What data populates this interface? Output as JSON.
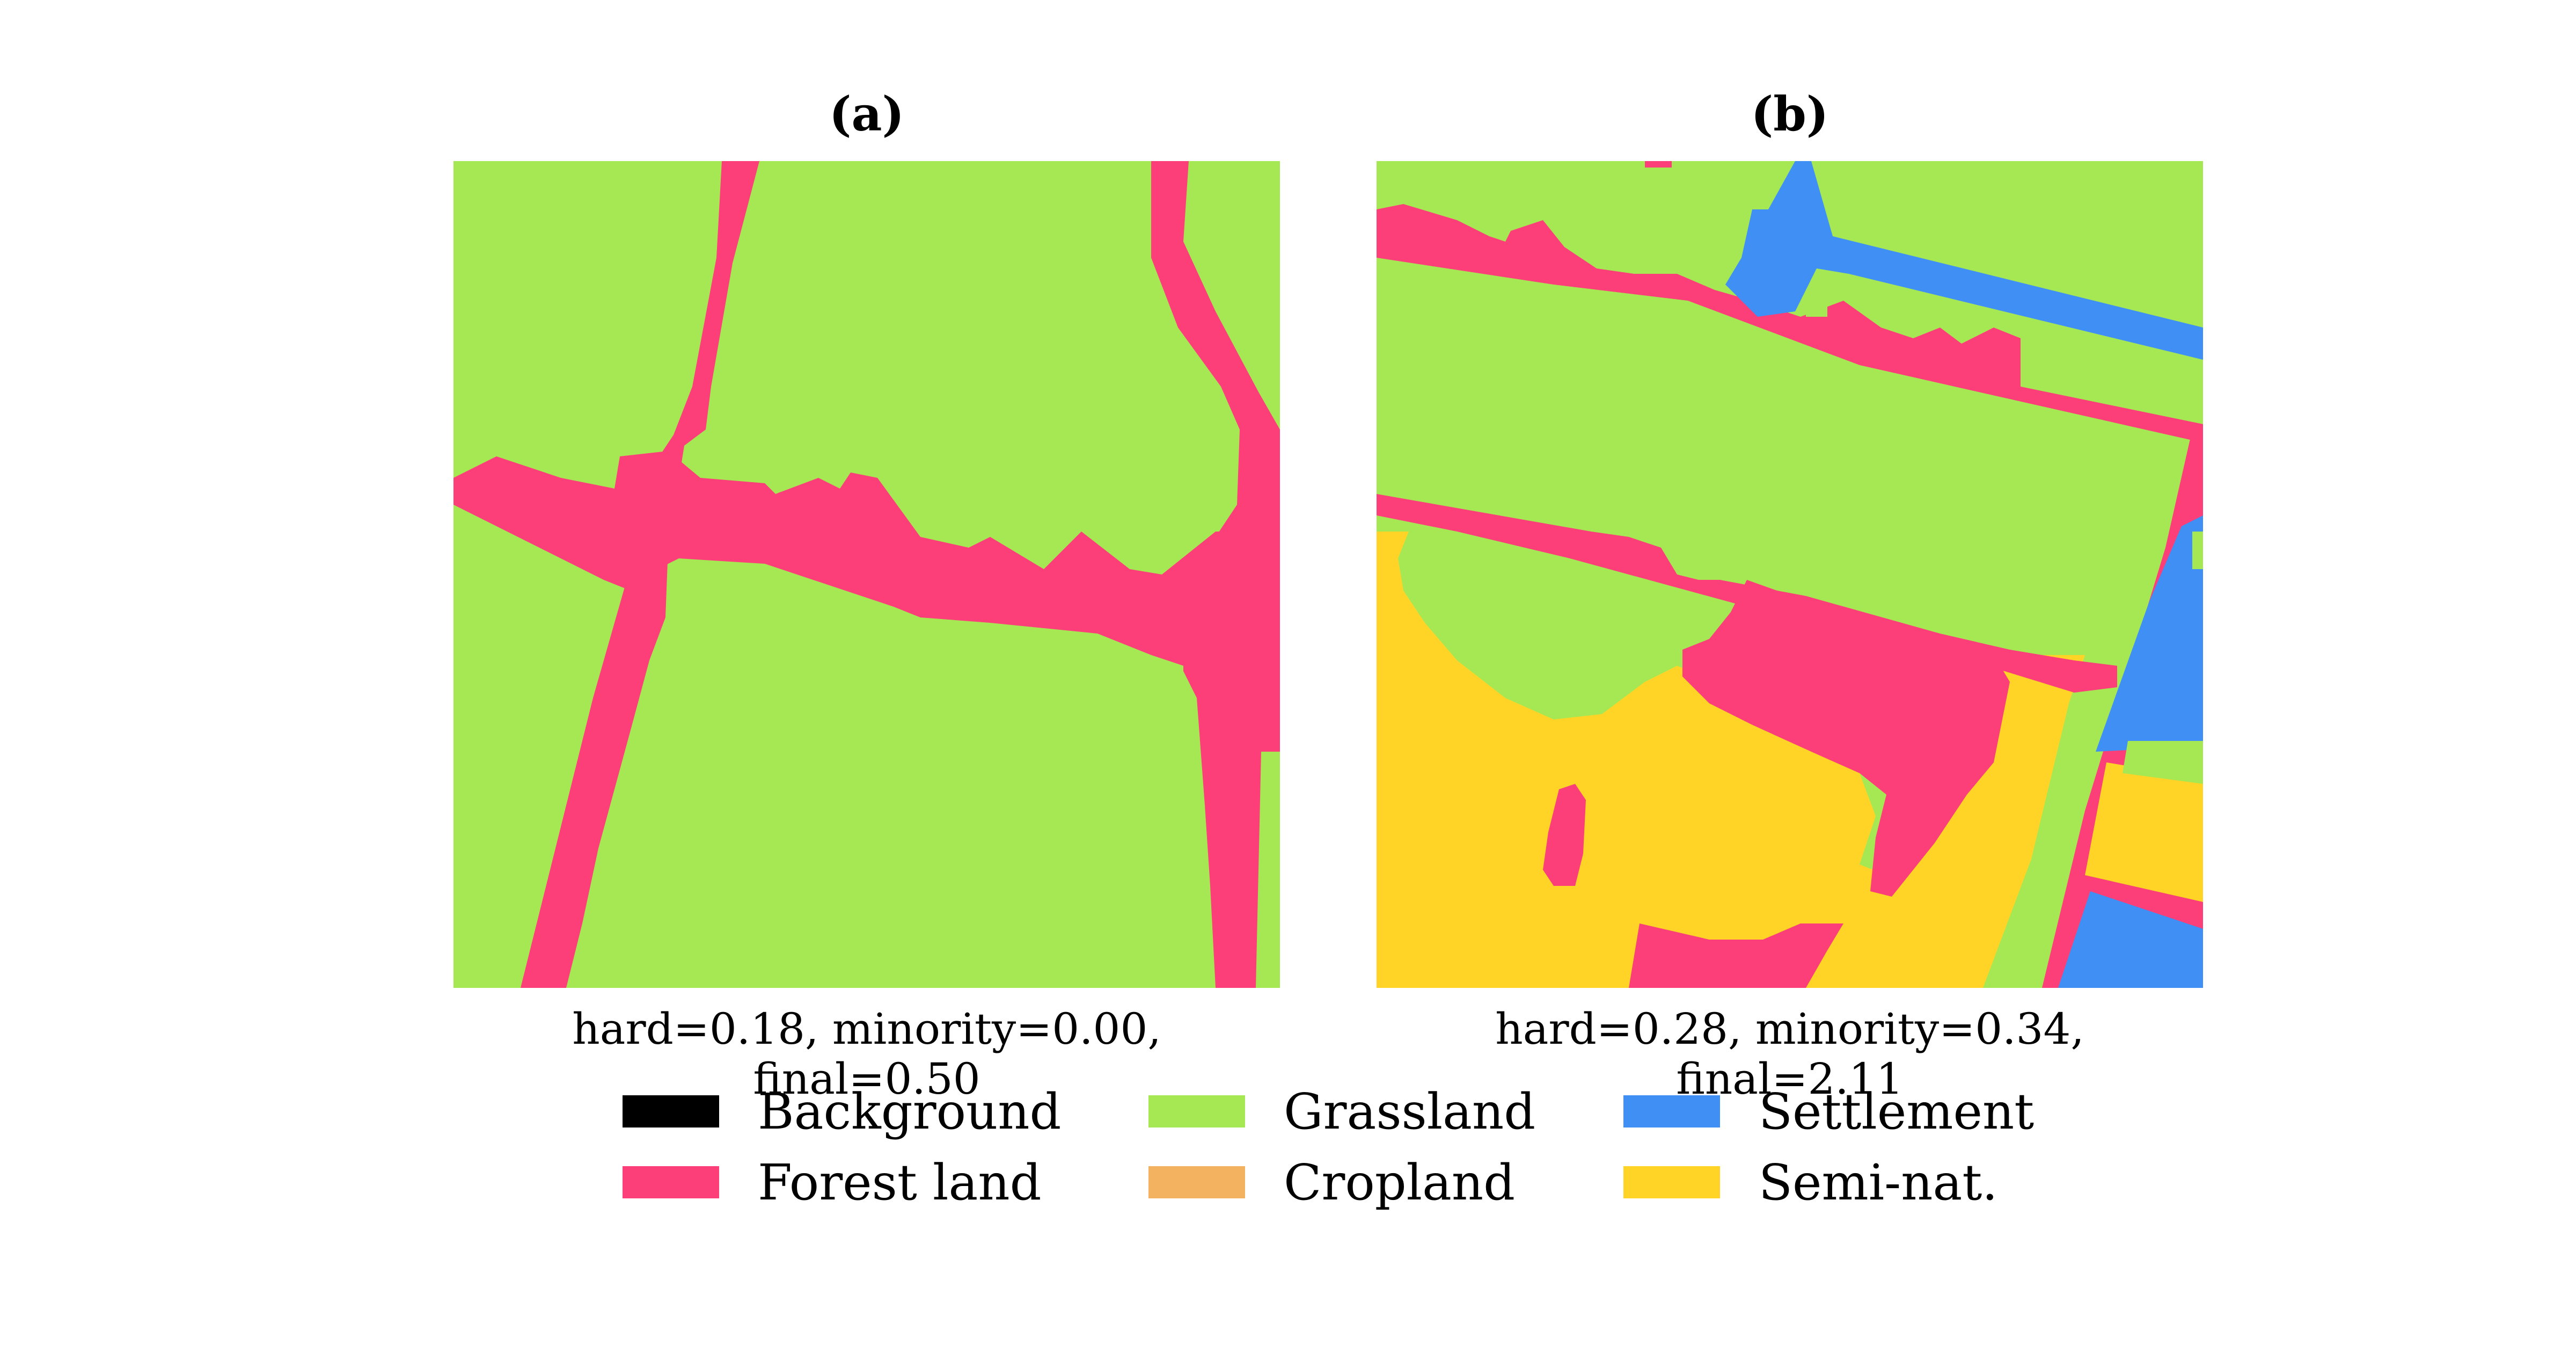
{
  "panels": [
    {
      "title": "(a)",
      "caption": "hard=0.18, minority=0.00, final=0.50"
    },
    {
      "title": "(b)",
      "caption": "hard=0.28, minority=0.34, final=2.11"
    }
  ],
  "legend": [
    {
      "label": "Background",
      "color": "#000000"
    },
    {
      "label": "Forest land",
      "color": "#fc3f78"
    },
    {
      "label": "Grassland",
      "color": "#a6e854"
    },
    {
      "label": "Cropland",
      "color": "#f3b25f"
    },
    {
      "label": "Settlement",
      "color": "#3f8ff5"
    },
    {
      "label": "Semi-nat.",
      "color": "#ffd426"
    }
  ],
  "colors": {
    "forest": "#fc3f78",
    "grassland": "#a6e854",
    "settlement": "#3f8ff5",
    "semi_nat": "#ffd426"
  }
}
